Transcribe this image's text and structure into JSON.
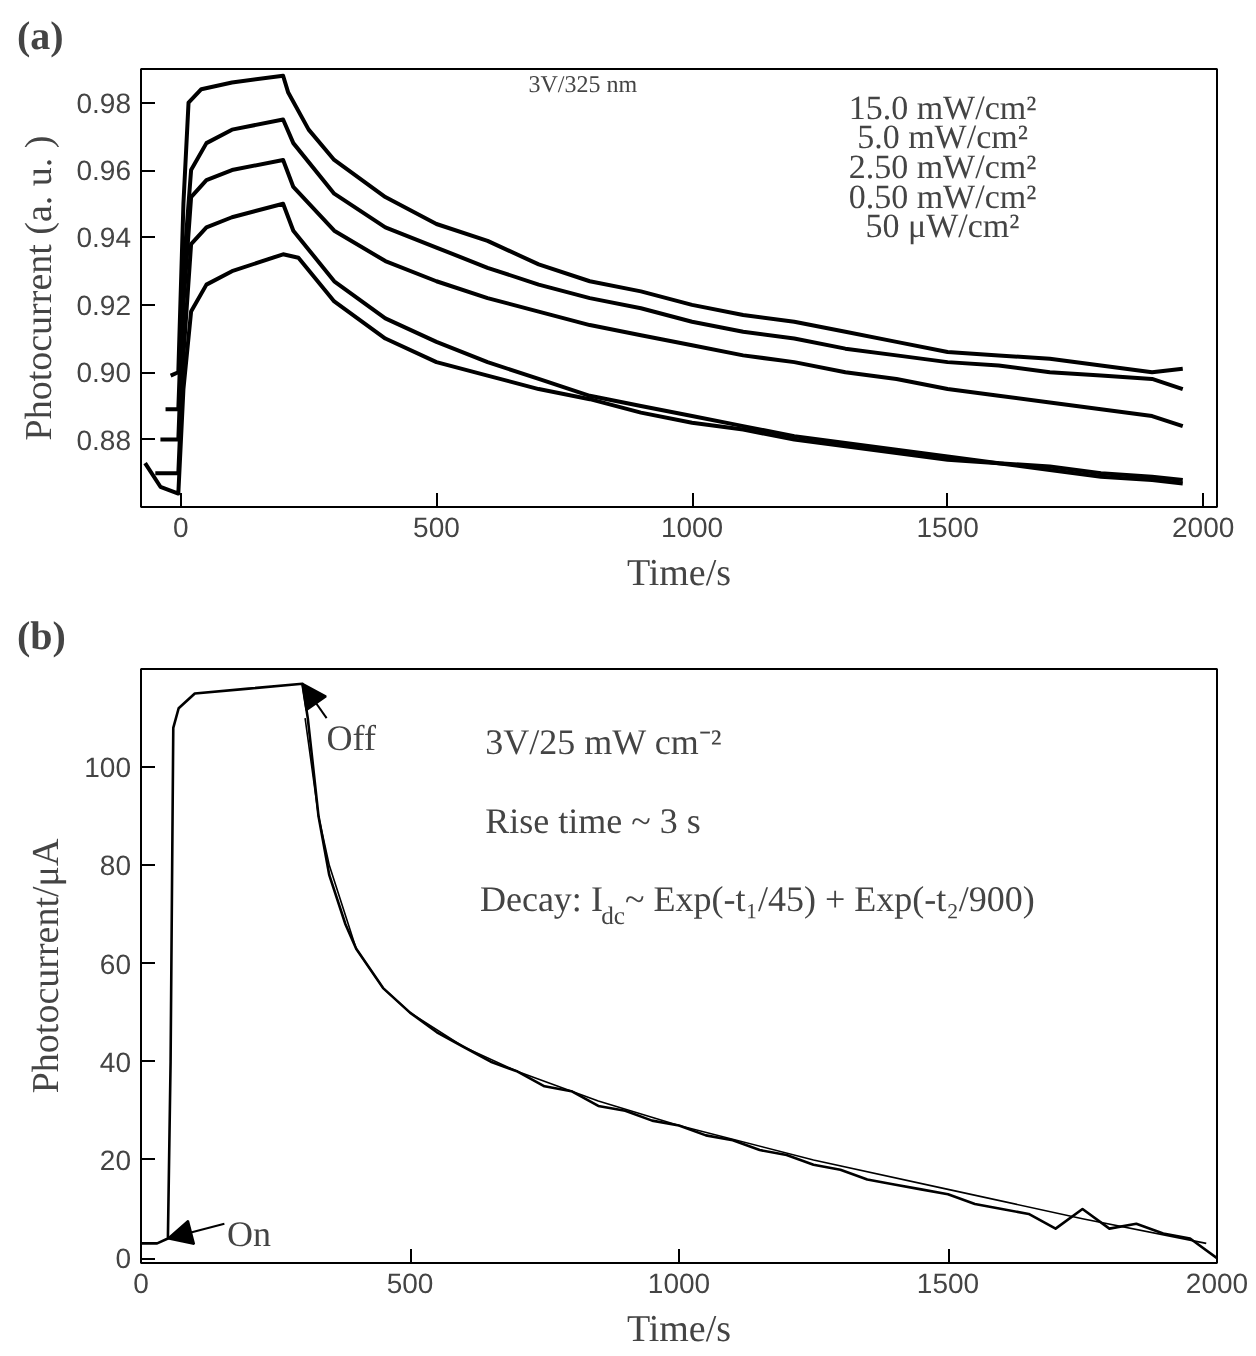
{
  "chart_data": [
    {
      "type": "line",
      "title": "(a)",
      "xlabel": "Time/s",
      "ylabel": "Photocurrent (a. u. )",
      "xlim": [
        -78,
        2027
      ],
      "ylim": [
        0.86,
        0.99
      ],
      "xticks": [
        0,
        500,
        1000,
        1500,
        2000
      ],
      "yticks": [
        0.88,
        {
          "value": 0.9,
          "label": "0.90"
        },
        0.92,
        0.94,
        0.96,
        0.98
      ],
      "grid": false,
      "marker": "none",
      "line_style": "solid",
      "annotations": [
        "3V/325 nm",
        "15.0 mW/cm²",
        "5.0 mW/cm²",
        "2.50 mW/cm²",
        "0.50 mW/cm²",
        "50 μW/cm²"
      ],
      "series": [
        {
          "color": "#000000",
          "x": [
            -20,
            -5,
            5,
            15,
            40,
            100,
            200,
            210,
            250,
            300,
            400,
            500,
            600,
            700,
            800,
            900,
            1000,
            1100,
            1200,
            1300,
            1400,
            1500,
            1600,
            1700,
            1800,
            1900,
            1960
          ],
          "values": [
            0.899,
            0.9,
            0.95,
            0.98,
            0.984,
            0.986,
            0.988,
            0.983,
            0.972,
            0.963,
            0.952,
            0.944,
            0.939,
            0.932,
            0.927,
            0.924,
            0.92,
            0.917,
            0.915,
            0.912,
            0.909,
            0.906,
            0.905,
            0.904,
            0.902,
            0.9,
            0.901
          ]
        },
        {
          "color": "#000000",
          "x": [
            -30,
            -5,
            5,
            20,
            50,
            100,
            200,
            220,
            300,
            400,
            500,
            600,
            700,
            800,
            900,
            1000,
            1100,
            1200,
            1300,
            1400,
            1500,
            1600,
            1700,
            1800,
            1900,
            1960
          ],
          "values": [
            0.889,
            0.889,
            0.93,
            0.96,
            0.968,
            0.972,
            0.975,
            0.968,
            0.953,
            0.943,
            0.937,
            0.931,
            0.926,
            0.922,
            0.919,
            0.915,
            0.912,
            0.91,
            0.907,
            0.905,
            0.903,
            0.902,
            0.9,
            0.899,
            0.898,
            0.895
          ]
        },
        {
          "color": "#000000",
          "x": [
            -40,
            -5,
            5,
            20,
            50,
            100,
            200,
            220,
            300,
            400,
            500,
            600,
            700,
            800,
            900,
            1000,
            1100,
            1200,
            1300,
            1400,
            1500,
            1600,
            1700,
            1800,
            1900,
            1960
          ],
          "values": [
            0.88,
            0.88,
            0.92,
            0.952,
            0.957,
            0.96,
            0.963,
            0.955,
            0.942,
            0.933,
            0.927,
            0.922,
            0.918,
            0.914,
            0.911,
            0.908,
            0.905,
            0.903,
            0.9,
            0.898,
            0.895,
            0.893,
            0.891,
            0.889,
            0.887,
            0.884
          ]
        },
        {
          "color": "#000000",
          "x": [
            -50,
            -5,
            5,
            20,
            50,
            100,
            200,
            220,
            300,
            400,
            500,
            600,
            700,
            800,
            900,
            1000,
            1100,
            1200,
            1300,
            1400,
            1500,
            1600,
            1700,
            1800,
            1900,
            1960
          ],
          "values": [
            0.87,
            0.87,
            0.905,
            0.938,
            0.943,
            0.946,
            0.95,
            0.942,
            0.927,
            0.916,
            0.909,
            0.903,
            0.898,
            0.893,
            0.89,
            0.887,
            0.884,
            0.881,
            0.879,
            0.877,
            0.875,
            0.873,
            0.872,
            0.87,
            0.869,
            0.868
          ]
        },
        {
          "color": "#000000",
          "x": [
            -70,
            -40,
            -5,
            5,
            20,
            50,
            100,
            200,
            230,
            300,
            400,
            500,
            600,
            700,
            800,
            900,
            1000,
            1100,
            1200,
            1300,
            1400,
            1500,
            1600,
            1700,
            1800,
            1900,
            1960
          ],
          "values": [
            0.873,
            0.866,
            0.864,
            0.895,
            0.918,
            0.926,
            0.93,
            0.935,
            0.934,
            0.921,
            0.91,
            0.903,
            0.899,
            0.895,
            0.892,
            0.888,
            0.885,
            0.883,
            0.88,
            0.878,
            0.876,
            0.874,
            0.873,
            0.871,
            0.869,
            0.868,
            0.867
          ]
        }
      ]
    },
    {
      "type": "line",
      "title": "(b)",
      "xlabel": "Time/s",
      "ylabel": "Photocurrent/μA",
      "xlim": [
        0,
        2000
      ],
      "ylim": [
        -1,
        120
      ],
      "xticks": [
        0,
        500,
        1000,
        1500,
        2000
      ],
      "yticks": [
        0,
        20,
        40,
        60,
        80,
        100
      ],
      "grid": false,
      "marker": "none",
      "line_style": "solid",
      "annotations": [
        {
          "text": "Off",
          "x": 300,
          "y": 117
        },
        {
          "text": "On",
          "x": 50,
          "y": 4
        },
        "3V/25 mW cm⁻²",
        "Rise time ~ 3 s",
        "Decay: I$_{dc}$~ Exp(-t₁/45) + Exp(-t₂/900)"
      ],
      "series": [
        {
          "color": "#000000",
          "x": [
            0,
            30,
            50,
            55,
            60,
            70,
            100,
            200,
            300,
            310,
            330,
            350,
            380,
            400,
            450,
            500,
            550,
            600,
            650,
            700,
            750,
            800,
            850,
            900,
            950,
            1000,
            1050,
            1100,
            1150,
            1200,
            1250,
            1300,
            1350,
            1400,
            1450,
            1500,
            1550,
            1600,
            1650,
            1700,
            1750,
            1800,
            1850,
            1900,
            1950,
            2000
          ],
          "values": [
            3,
            3,
            4,
            40,
            108,
            112,
            115,
            116,
            117,
            110,
            90,
            78,
            68,
            63,
            55,
            50,
            46,
            43,
            40,
            38,
            35,
            34,
            31,
            30,
            28,
            27,
            25,
            24,
            22,
            21,
            19,
            18,
            16,
            15,
            14,
            13,
            11,
            10,
            9,
            6,
            10,
            6,
            7,
            5,
            4,
            0
          ]
        },
        {
          "color": "#000000",
          "x": [
            305,
            330,
            350,
            400,
            450,
            500,
            600,
            700,
            850,
            1000,
            1250,
            1500,
            1750,
            1980
          ],
          "values": [
            110,
            90,
            80,
            63,
            55,
            50,
            43,
            38,
            32,
            27,
            20,
            14,
            8,
            3
          ]
        }
      ]
    }
  ]
}
